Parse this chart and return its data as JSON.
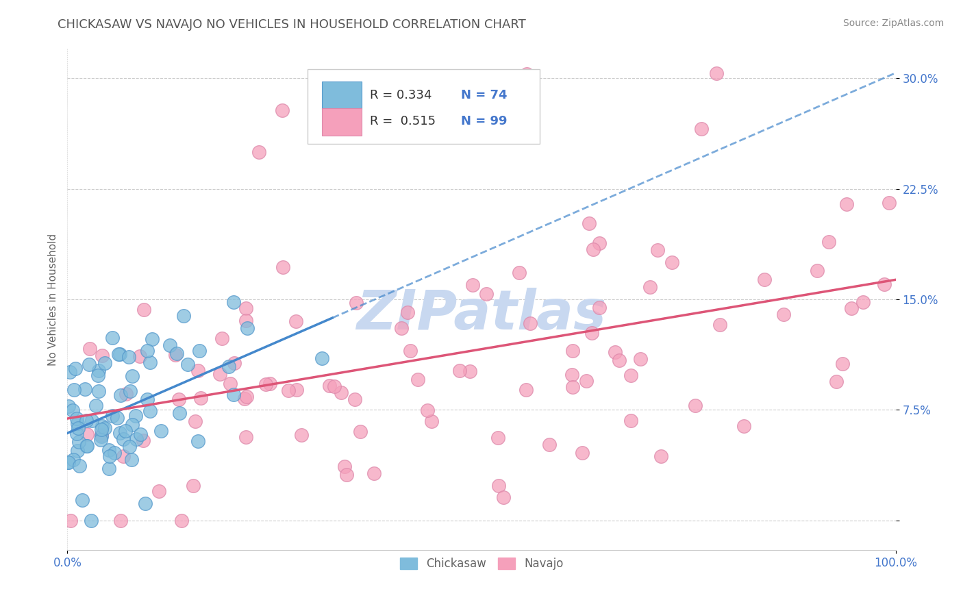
{
  "title": "CHICKASAW VS NAVAJO NO VEHICLES IN HOUSEHOLD CORRELATION CHART",
  "source": "Source: ZipAtlas.com",
  "ylabel": "No Vehicles in Household",
  "xlim": [
    0,
    100
  ],
  "ylim": [
    -2,
    32
  ],
  "yticks": [
    0,
    7.5,
    15.0,
    22.5,
    30.0
  ],
  "ytick_labels": [
    "",
    "7.5%",
    "15.0%",
    "22.5%",
    "30.0%"
  ],
  "xtick_labels": [
    "0.0%",
    "100.0%"
  ],
  "chickasaw_R": 0.334,
  "chickasaw_N": 74,
  "navajo_R": 0.515,
  "navajo_N": 99,
  "chickasaw_color": "#7fbcdc",
  "navajo_color": "#f5a0bb",
  "chickasaw_line_color": "#4488cc",
  "navajo_line_color": "#dd5577",
  "chickasaw_edge_color": "#5599cc",
  "navajo_edge_color": "#dd88aa",
  "grid_color": "#cccccc",
  "watermark": "ZIPatlas",
  "watermark_color": "#c8d8f0",
  "title_color": "#555555",
  "axis_label_color": "#666666",
  "tick_color": "#4477cc",
  "legend_R_color": "#4477cc",
  "legend_box_edge": "#cccccc",
  "source_color": "#888888"
}
